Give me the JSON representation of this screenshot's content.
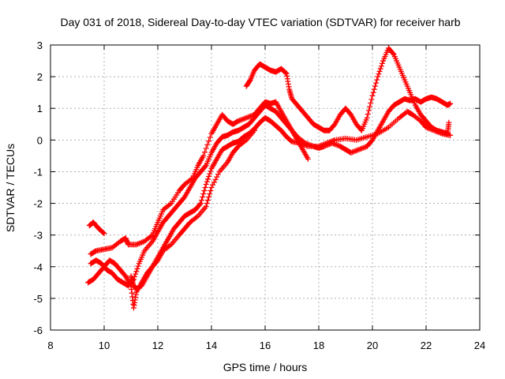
{
  "chart_data": {
    "type": "scatter",
    "title": "Day 031 of 2018, Sidereal Day-to-day VTEC variation (SDTVAR) for receiver harb",
    "xlabel": "GPS time / hours",
    "ylabel": "SDTVAR / TECUs",
    "xlim": [
      8,
      24
    ],
    "ylim": [
      -6,
      3
    ],
    "xticks": [
      8,
      10,
      12,
      14,
      16,
      18,
      20,
      22,
      24
    ],
    "yticks": [
      -6,
      -5,
      -4,
      -3,
      -2,
      -1,
      0,
      1,
      2,
      3
    ],
    "xtick_labels": [
      "8",
      "10",
      "12",
      "14",
      "16",
      "18",
      "20",
      "22",
      "24"
    ],
    "ytick_labels": [
      "-6",
      "-5",
      "-4",
      "-3",
      "-2",
      "-1",
      "0",
      "1",
      "2",
      "3"
    ],
    "grid": true,
    "marker": "+",
    "color": "#ff0000",
    "series": [
      {
        "name": "track-1",
        "points": [
          [
            9.45,
            -2.7
          ],
          [
            9.6,
            -2.6
          ],
          [
            9.8,
            -2.8
          ],
          [
            10.0,
            -2.95
          ]
        ]
      },
      {
        "name": "track-2",
        "points": [
          [
            9.5,
            -3.6
          ],
          [
            9.7,
            -3.5
          ],
          [
            10.0,
            -3.45
          ],
          [
            10.3,
            -3.4
          ],
          [
            10.6,
            -3.2
          ],
          [
            10.8,
            -3.1
          ],
          [
            10.9,
            -3.3
          ],
          [
            11.2,
            -3.3
          ],
          [
            11.5,
            -3.2
          ],
          [
            11.8,
            -3.0
          ],
          [
            12.0,
            -2.6
          ],
          [
            12.2,
            -2.2
          ],
          [
            12.5,
            -2.0
          ],
          [
            12.8,
            -1.6
          ],
          [
            13.0,
            -1.4
          ],
          [
            13.3,
            -1.2
          ],
          [
            13.5,
            -0.8
          ],
          [
            13.7,
            -0.5
          ],
          [
            14.0,
            0.2
          ],
          [
            14.2,
            0.5
          ],
          [
            14.4,
            0.8
          ],
          [
            14.6,
            0.6
          ],
          [
            14.8,
            0.5
          ],
          [
            15.0,
            0.6
          ],
          [
            15.3,
            0.7
          ],
          [
            15.6,
            0.8
          ],
          [
            15.8,
            1.0
          ],
          [
            16.0,
            1.2
          ],
          [
            16.2,
            1.15
          ],
          [
            16.4,
            1.2
          ],
          [
            16.6,
            0.9
          ],
          [
            16.8,
            0.6
          ],
          [
            17.0,
            0.3
          ],
          [
            17.2,
            0.0
          ],
          [
            17.4,
            -0.3
          ],
          [
            17.6,
            -0.6
          ]
        ]
      },
      {
        "name": "track-3",
        "points": [
          [
            9.5,
            -3.9
          ],
          [
            9.7,
            -3.8
          ],
          [
            9.9,
            -3.9
          ],
          [
            10.1,
            -4.1
          ],
          [
            10.3,
            -4.2
          ],
          [
            10.5,
            -4.4
          ],
          [
            10.7,
            -4.5
          ],
          [
            10.9,
            -4.6
          ],
          [
            11.1,
            -4.4
          ],
          [
            11.3,
            -3.9
          ],
          [
            11.5,
            -3.5
          ],
          [
            11.8,
            -3.2
          ],
          [
            12.0,
            -2.9
          ],
          [
            12.2,
            -2.6
          ],
          [
            12.4,
            -2.4
          ],
          [
            12.6,
            -2.2
          ],
          [
            12.8,
            -2.0
          ],
          [
            13.0,
            -1.8
          ],
          [
            13.2,
            -1.5
          ],
          [
            13.4,
            -1.2
          ],
          [
            13.6,
            -1.0
          ],
          [
            13.8,
            -0.8
          ],
          [
            14.0,
            -0.4
          ],
          [
            14.2,
            -0.1
          ],
          [
            14.4,
            0.1
          ],
          [
            14.6,
            0.15
          ],
          [
            14.8,
            0.25
          ],
          [
            15.0,
            0.3
          ],
          [
            15.2,
            0.4
          ],
          [
            15.4,
            0.5
          ],
          [
            15.6,
            0.7
          ],
          [
            15.8,
            0.9
          ],
          [
            16.0,
            1.1
          ],
          [
            16.2,
            1.0
          ],
          [
            16.4,
            0.9
          ],
          [
            16.6,
            0.7
          ],
          [
            16.8,
            0.5
          ],
          [
            17.0,
            0.3
          ],
          [
            17.2,
            0.1
          ],
          [
            17.5,
            -0.1
          ],
          [
            17.8,
            -0.2
          ],
          [
            18.0,
            -0.25
          ],
          [
            18.2,
            -0.2
          ],
          [
            18.5,
            -0.1
          ],
          [
            18.8,
            -0.2
          ],
          [
            19.0,
            -0.3
          ],
          [
            19.2,
            -0.4
          ],
          [
            19.5,
            -0.3
          ],
          [
            19.8,
            -0.2
          ],
          [
            20.0,
            0.0
          ],
          [
            20.2,
            0.3
          ],
          [
            20.4,
            0.6
          ],
          [
            20.6,
            0.9
          ],
          [
            20.8,
            1.1
          ],
          [
            21.0,
            1.2
          ],
          [
            21.2,
            1.3
          ],
          [
            21.4,
            1.25
          ],
          [
            21.6,
            1.3
          ],
          [
            21.8,
            1.2
          ],
          [
            22.0,
            1.3
          ],
          [
            22.2,
            1.35
          ],
          [
            22.4,
            1.3
          ],
          [
            22.6,
            1.2
          ],
          [
            22.8,
            1.1
          ],
          [
            22.9,
            1.15
          ]
        ]
      },
      {
        "name": "track-4",
        "points": [
          [
            9.4,
            -4.5
          ],
          [
            9.6,
            -4.4
          ],
          [
            9.8,
            -4.2
          ],
          [
            10.0,
            -4.0
          ],
          [
            10.2,
            -3.8
          ],
          [
            10.4,
            -3.9
          ],
          [
            10.6,
            -4.1
          ],
          [
            10.8,
            -4.3
          ],
          [
            11.0,
            -4.6
          ],
          [
            11.1,
            -5.3
          ],
          [
            11.2,
            -4.8
          ],
          [
            11.4,
            -4.5
          ],
          [
            11.6,
            -4.2
          ],
          [
            11.8,
            -4.0
          ],
          [
            12.0,
            -3.7
          ],
          [
            12.2,
            -3.4
          ],
          [
            12.4,
            -3.1
          ],
          [
            12.6,
            -2.8
          ],
          [
            12.8,
            -2.6
          ],
          [
            13.0,
            -2.4
          ],
          [
            13.2,
            -2.3
          ],
          [
            13.4,
            -2.2
          ],
          [
            13.6,
            -2.0
          ],
          [
            13.8,
            -1.4
          ],
          [
            14.0,
            -0.9
          ],
          [
            14.2,
            -0.6
          ],
          [
            14.4,
            -0.3
          ],
          [
            14.6,
            -0.2
          ],
          [
            14.8,
            -0.1
          ],
          [
            15.0,
            -0.05
          ],
          [
            15.2,
            0.1
          ],
          [
            15.4,
            0.2
          ],
          [
            15.6,
            0.35
          ],
          [
            15.8,
            0.55
          ],
          [
            16.0,
            0.7
          ],
          [
            16.2,
            0.6
          ],
          [
            16.4,
            0.45
          ],
          [
            16.6,
            0.3
          ],
          [
            16.8,
            0.1
          ],
          [
            17.0,
            -0.05
          ],
          [
            17.3,
            -0.1
          ],
          [
            17.6,
            -0.2
          ],
          [
            18.0,
            -0.2
          ],
          [
            18.3,
            -0.1
          ],
          [
            18.6,
            0.0
          ],
          [
            19.0,
            0.05
          ],
          [
            19.4,
            0.0
          ],
          [
            19.8,
            0.1
          ],
          [
            20.2,
            0.2
          ],
          [
            20.6,
            0.4
          ],
          [
            21.0,
            0.7
          ],
          [
            21.3,
            0.9
          ],
          [
            21.5,
            0.8
          ],
          [
            21.8,
            0.6
          ],
          [
            22.0,
            0.4
          ],
          [
            22.3,
            0.3
          ],
          [
            22.6,
            0.2
          ],
          [
            22.9,
            0.15
          ]
        ]
      },
      {
        "name": "track-5",
        "points": [
          [
            15.3,
            1.7
          ],
          [
            15.45,
            1.9
          ],
          [
            15.6,
            2.2
          ],
          [
            15.8,
            2.4
          ],
          [
            16.0,
            2.3
          ],
          [
            16.2,
            2.2
          ],
          [
            16.4,
            2.15
          ],
          [
            16.6,
            2.25
          ],
          [
            16.8,
            2.1
          ],
          [
            16.9,
            1.6
          ],
          [
            17.0,
            1.3
          ],
          [
            17.2,
            1.1
          ],
          [
            17.4,
            0.9
          ],
          [
            17.6,
            0.7
          ],
          [
            17.8,
            0.5
          ],
          [
            18.0,
            0.4
          ],
          [
            18.2,
            0.3
          ],
          [
            18.4,
            0.3
          ],
          [
            18.6,
            0.5
          ],
          [
            18.8,
            0.8
          ],
          [
            19.0,
            1.0
          ],
          [
            19.2,
            0.8
          ],
          [
            19.4,
            0.5
          ],
          [
            19.6,
            0.3
          ],
          [
            19.8,
            0.7
          ],
          [
            20.0,
            1.4
          ],
          [
            20.2,
            2.0
          ],
          [
            20.4,
            2.5
          ],
          [
            20.6,
            2.9
          ],
          [
            20.8,
            2.7
          ],
          [
            21.0,
            2.3
          ],
          [
            21.2,
            1.9
          ],
          [
            21.4,
            1.5
          ],
          [
            21.6,
            1.1
          ],
          [
            21.8,
            0.8
          ],
          [
            22.0,
            0.6
          ],
          [
            22.2,
            0.4
          ],
          [
            22.4,
            0.3
          ],
          [
            22.6,
            0.25
          ],
          [
            22.8,
            0.2
          ],
          [
            22.85,
            0.55
          ]
        ]
      },
      {
        "name": "track-6",
        "points": [
          [
            11.0,
            -4.3
          ],
          [
            11.1,
            -4.6
          ],
          [
            11.2,
            -4.7
          ],
          [
            11.4,
            -4.6
          ],
          [
            11.6,
            -4.3
          ],
          [
            11.8,
            -4.0
          ],
          [
            12.0,
            -3.8
          ],
          [
            12.2,
            -3.5
          ],
          [
            12.5,
            -3.3
          ],
          [
            12.8,
            -3.0
          ],
          [
            13.0,
            -2.8
          ],
          [
            13.2,
            -2.6
          ],
          [
            13.5,
            -2.4
          ],
          [
            13.8,
            -2.1
          ],
          [
            14.0,
            -1.5
          ],
          [
            14.3,
            -1.0
          ],
          [
            14.6,
            -0.7
          ],
          [
            14.8,
            -0.4
          ],
          [
            15.0,
            -0.2
          ],
          [
            15.3,
            0.0
          ],
          [
            15.6,
            0.3
          ]
        ]
      }
    ]
  }
}
